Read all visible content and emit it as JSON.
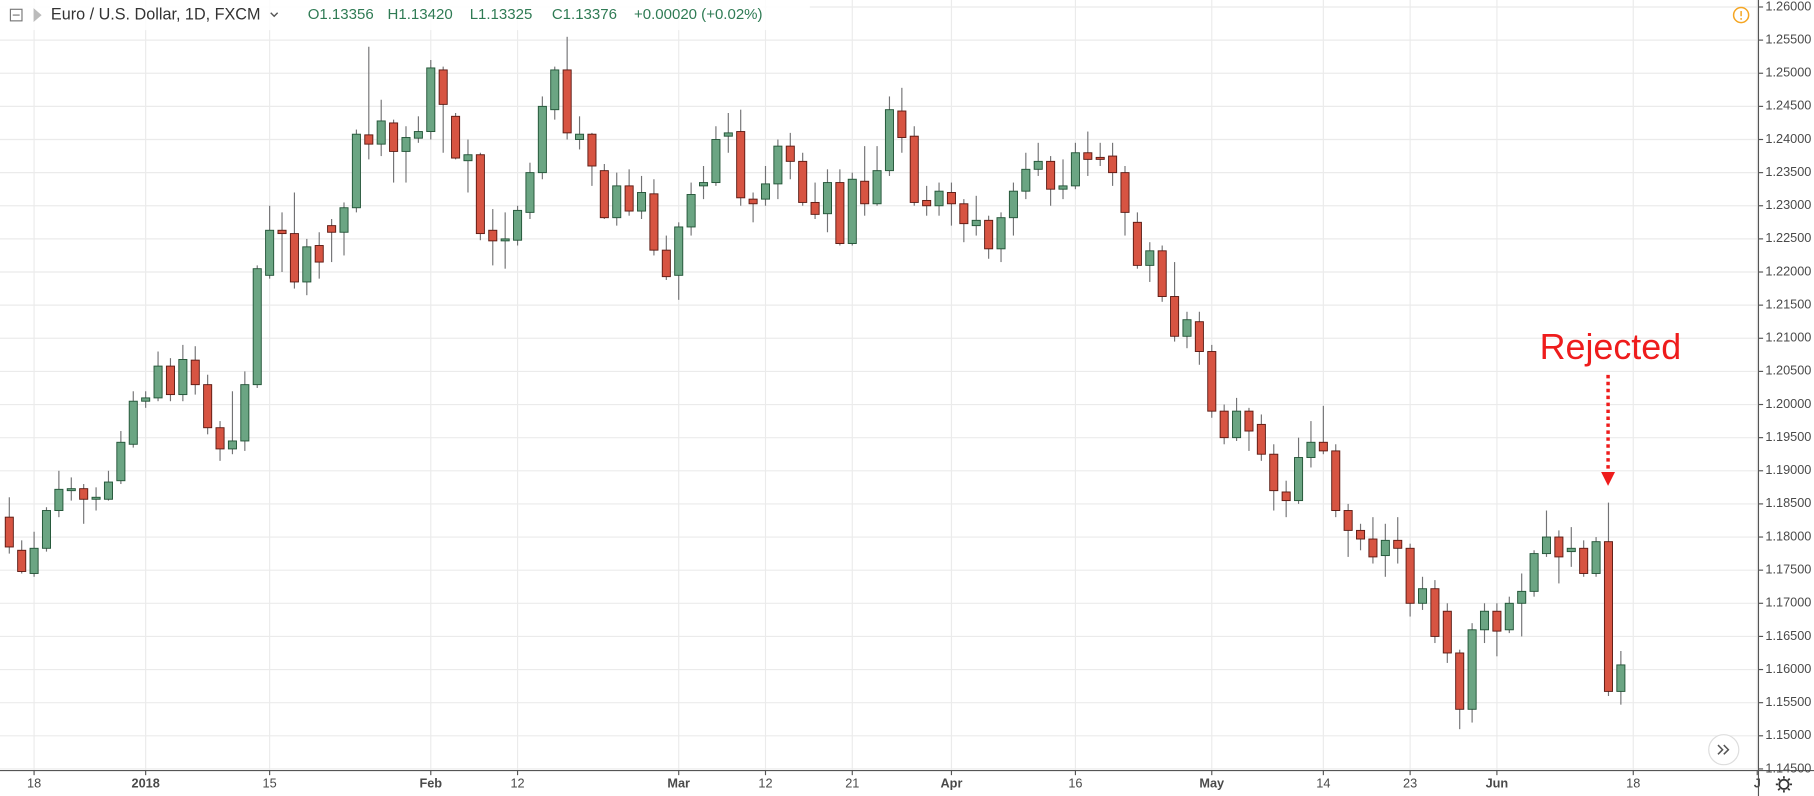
{
  "chart_data": {
    "type": "candlestick",
    "title": "Euro / U.S. Dollar, 1D, FXCM",
    "ohlc_legend": [
      "O1.13356",
      "H1.13420",
      "L1.13325",
      "C1.13376",
      "+0.00020 (+0.02%)"
    ],
    "annotation": "Rejected",
    "up_color": "#6ba583",
    "down_color": "#d75442",
    "grid": true,
    "xlim": [
      -0.75,
      141.1
    ],
    "xticks": [
      {
        "value": 2,
        "label": "18"
      },
      {
        "value": 11,
        "label": "2018"
      },
      {
        "value": 21,
        "label": "15"
      },
      {
        "value": 34,
        "label": "Feb"
      },
      {
        "value": 41,
        "label": "12"
      },
      {
        "value": 54,
        "label": "Mar"
      },
      {
        "value": 61,
        "label": "12"
      },
      {
        "value": 68,
        "label": "21"
      },
      {
        "value": 76,
        "label": "Apr"
      },
      {
        "value": 86,
        "label": "16"
      },
      {
        "value": 97,
        "label": "May"
      },
      {
        "value": 106,
        "label": "14"
      },
      {
        "value": 113,
        "label": "23"
      },
      {
        "value": 120,
        "label": "Jun"
      },
      {
        "value": 131,
        "label": "18"
      },
      {
        "value": 141,
        "label": "J"
      }
    ],
    "ylim": [
      1.14476,
      1.26105
    ],
    "yticks": [
      {
        "value": 1.145,
        "label": "1.14500"
      },
      {
        "value": 1.15,
        "label": "1.15000"
      },
      {
        "value": 1.155,
        "label": "1.15500"
      },
      {
        "value": 1.16,
        "label": "1.16000"
      },
      {
        "value": 1.165,
        "label": "1.16500"
      },
      {
        "value": 1.17,
        "label": "1.17000"
      },
      {
        "value": 1.175,
        "label": "1.17500"
      },
      {
        "value": 1.18,
        "label": "1.18000"
      },
      {
        "value": 1.185,
        "label": "1.18500"
      },
      {
        "value": 1.19,
        "label": "1.19000"
      },
      {
        "value": 1.195,
        "label": "1.19500"
      },
      {
        "value": 1.2,
        "label": "1.20000"
      },
      {
        "value": 1.205,
        "label": "1.20500"
      },
      {
        "value": 1.21,
        "label": "1.21000"
      },
      {
        "value": 1.215,
        "label": "1.21500"
      },
      {
        "value": 1.22,
        "label": "1.22000"
      },
      {
        "value": 1.225,
        "label": "1.22500"
      },
      {
        "value": 1.23,
        "label": "1.23000"
      },
      {
        "value": 1.235,
        "label": "1.23500"
      },
      {
        "value": 1.24,
        "label": "1.24000"
      },
      {
        "value": 1.245,
        "label": "1.24500"
      },
      {
        "value": 1.25,
        "label": "1.25000"
      },
      {
        "value": 1.255,
        "label": "1.25500"
      },
      {
        "value": 1.26,
        "label": "1.26000"
      }
    ],
    "open": [
      1.183,
      1.178,
      1.1745,
      1.1783,
      1.184,
      1.187,
      1.1873,
      1.1857,
      1.1857,
      1.1885,
      1.194,
      1.2005,
      1.201,
      1.2058,
      1.2015,
      1.2067,
      1.203,
      1.1965,
      1.1933,
      1.1945,
      1.203,
      1.2195,
      1.2263,
      1.2258,
      1.2185,
      1.224,
      1.227,
      1.226,
      1.2297,
      1.2407,
      1.2393,
      1.2425,
      1.2382,
      1.2402,
      1.2412,
      1.2505,
      1.2435,
      1.2368,
      1.2377,
      1.2263,
      1.2247,
      1.2248,
      1.229,
      1.235,
      1.2445,
      1.2505,
      1.24,
      1.2408,
      1.2353,
      1.2282,
      1.233,
      1.2292,
      1.2318,
      1.2233,
      1.2195,
      1.2268,
      1.233,
      1.2335,
      1.2405,
      1.2412,
      1.231,
      1.231,
      1.2333,
      1.239,
      1.2367,
      1.2305,
      1.2288,
      1.2335,
      1.2243,
      1.2337,
      1.2303,
      1.2353,
      1.2443,
      1.2405,
      1.2308,
      1.23,
      1.232,
      1.2303,
      1.227,
      1.2278,
      1.2235,
      1.2282,
      1.2322,
      1.2355,
      1.2367,
      1.2325,
      1.233,
      1.238,
      1.2373,
      1.2375,
      1.235,
      1.2275,
      1.221,
      1.2232,
      1.2163,
      1.2103,
      1.2125,
      1.208,
      1.199,
      1.195,
      1.199,
      1.197,
      1.1925,
      1.1868,
      1.1855,
      1.192,
      1.1943,
      1.193,
      1.184,
      1.181,
      1.1797,
      1.1772,
      1.1795,
      1.1783,
      1.17,
      1.1722,
      1.1688,
      1.1625,
      1.154,
      1.166,
      1.1688,
      1.166,
      1.17,
      1.1718,
      1.1775,
      1.18,
      1.1778,
      1.1783,
      1.1745,
      1.1793,
      1.1567
    ],
    "high": [
      1.186,
      1.1795,
      1.1808,
      1.1845,
      1.19,
      1.189,
      1.188,
      1.1875,
      1.19,
      1.196,
      1.202,
      1.202,
      1.208,
      1.207,
      1.209,
      1.2088,
      1.2045,
      1.1975,
      1.202,
      1.205,
      1.221,
      1.23,
      1.229,
      1.232,
      1.225,
      1.226,
      1.228,
      1.2305,
      1.2415,
      1.254,
      1.246,
      1.243,
      1.242,
      1.2435,
      1.252,
      1.251,
      1.244,
      1.24,
      1.238,
      1.2295,
      1.229,
      1.23,
      1.2365,
      1.2465,
      1.251,
      1.2555,
      1.2435,
      1.241,
      1.2363,
      1.235,
      1.2355,
      1.2345,
      1.234,
      1.2255,
      1.2275,
      1.2335,
      1.236,
      1.242,
      1.244,
      1.2445,
      1.232,
      1.236,
      1.24,
      1.241,
      1.238,
      1.2335,
      1.2355,
      1.2355,
      1.235,
      1.239,
      1.239,
      1.2465,
      1.2478,
      1.242,
      1.233,
      1.2335,
      1.2335,
      1.231,
      1.2315,
      1.2285,
      1.229,
      1.2335,
      1.238,
      1.2395,
      1.2375,
      1.237,
      1.2395,
      1.2412,
      1.2395,
      1.2395,
      1.236,
      1.229,
      1.2245,
      1.224,
      1.2215,
      1.214,
      1.214,
      1.209,
      1.2,
      1.201,
      1.1995,
      1.1985,
      1.194,
      1.1885,
      1.195,
      1.1975,
      1.1998,
      1.194,
      1.185,
      1.182,
      1.183,
      1.182,
      1.183,
      1.179,
      1.174,
      1.1735,
      1.17,
      1.163,
      1.167,
      1.17,
      1.17,
      1.171,
      1.1745,
      1.178,
      1.184,
      1.181,
      1.1815,
      1.1795,
      1.18,
      1.1852,
      1.1628
    ],
    "low": [
      1.1775,
      1.1745,
      1.174,
      1.1778,
      1.183,
      1.1855,
      1.182,
      1.184,
      1.1855,
      1.188,
      1.1935,
      1.1995,
      1.2005,
      1.2005,
      1.2005,
      1.2015,
      1.1955,
      1.1915,
      1.1925,
      1.193,
      1.2025,
      1.219,
      1.22,
      1.2175,
      1.2165,
      1.219,
      1.2215,
      1.2225,
      1.229,
      1.237,
      1.2375,
      1.2335,
      1.2335,
      1.2395,
      1.24,
      1.238,
      1.237,
      1.232,
      1.2248,
      1.221,
      1.2205,
      1.224,
      1.228,
      1.234,
      1.243,
      1.24,
      1.2385,
      1.233,
      1.228,
      1.227,
      1.2285,
      1.228,
      1.2225,
      1.2188,
      1.2158,
      1.2255,
      1.231,
      1.233,
      1.238,
      1.23,
      1.2275,
      1.23,
      1.231,
      1.234,
      1.23,
      1.228,
      1.226,
      1.224,
      1.224,
      1.2285,
      1.23,
      1.2345,
      1.238,
      1.23,
      1.2285,
      1.2285,
      1.227,
      1.2245,
      1.2255,
      1.222,
      1.2215,
      1.2255,
      1.231,
      1.2345,
      1.23,
      1.231,
      1.2325,
      1.2345,
      1.236,
      1.233,
      1.2255,
      1.2205,
      1.2185,
      1.2155,
      1.2095,
      1.2085,
      1.206,
      1.198,
      1.194,
      1.1945,
      1.193,
      1.1915,
      1.184,
      1.183,
      1.185,
      1.1905,
      1.1925,
      1.183,
      1.177,
      1.178,
      1.176,
      1.174,
      1.176,
      1.168,
      1.169,
      1.164,
      1.161,
      1.151,
      1.152,
      1.164,
      1.162,
      1.1655,
      1.165,
      1.171,
      1.177,
      1.173,
      1.1755,
      1.174,
      1.174,
      1.156,
      1.1547
    ],
    "close": [
      1.1785,
      1.1748,
      1.1783,
      1.184,
      1.1872,
      1.1873,
      1.1857,
      1.186,
      1.1883,
      1.1943,
      1.2005,
      1.201,
      1.2058,
      1.2015,
      1.2068,
      1.203,
      1.1965,
      1.1933,
      1.1945,
      1.203,
      1.2205,
      1.2263,
      1.2258,
      1.2185,
      1.2238,
      1.2215,
      1.226,
      1.2297,
      1.2408,
      1.2393,
      1.2428,
      1.2382,
      1.2403,
      1.2412,
      1.2508,
      1.2453,
      1.2372,
      1.2377,
      1.2258,
      1.2247,
      1.225,
      1.2293,
      1.235,
      1.245,
      1.2505,
      1.241,
      1.2408,
      1.236,
      1.2282,
      1.233,
      1.2292,
      1.232,
      1.2233,
      1.2193,
      1.2268,
      1.2317,
      1.2335,
      1.24,
      1.241,
      1.2312,
      1.2303,
      1.2333,
      1.239,
      1.2367,
      1.2305,
      1.2287,
      1.2335,
      1.2243,
      1.234,
      1.2303,
      1.2353,
      1.2445,
      1.2403,
      1.2305,
      1.23,
      1.2322,
      1.2303,
      1.2273,
      1.2278,
      1.2235,
      1.2282,
      1.2322,
      1.2355,
      1.2367,
      1.2325,
      1.233,
      1.238,
      1.237,
      1.237,
      1.235,
      1.229,
      1.221,
      1.2232,
      1.2163,
      1.2103,
      1.2128,
      1.208,
      1.199,
      1.195,
      1.199,
      1.196,
      1.1925,
      1.187,
      1.1855,
      1.192,
      1.1943,
      1.193,
      1.184,
      1.181,
      1.1797,
      1.177,
      1.1795,
      1.1783,
      1.17,
      1.1722,
      1.165,
      1.1625,
      1.154,
      1.166,
      1.1688,
      1.1658,
      1.17,
      1.1718,
      1.1775,
      1.18,
      1.177,
      1.1783,
      1.1745,
      1.1793,
      1.1567,
      1.1607
    ]
  }
}
